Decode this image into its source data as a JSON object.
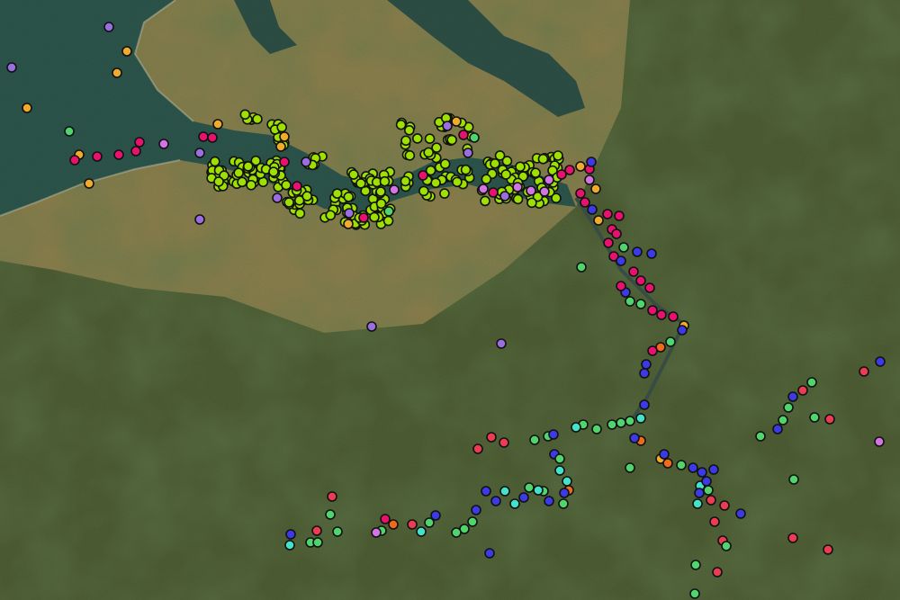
{
  "map": {
    "basemap": "satellite",
    "colors": {
      "land_agri": "#8a7f4c",
      "land_green": "#4b5a31",
      "water": "#2c554b"
    },
    "point_categories": [
      {
        "code": "L",
        "color": "#9ee000"
      },
      {
        "code": "M",
        "color": "#e8126e"
      },
      {
        "code": "P",
        "color": "#9a6ee0"
      },
      {
        "code": "V",
        "color": "#d474e4"
      },
      {
        "code": "O",
        "color": "#f0aa2c"
      },
      {
        "code": "R",
        "color": "#ea3c52"
      },
      {
        "code": "G",
        "color": "#4fd46e"
      },
      {
        "code": "C",
        "color": "#44e2c8"
      },
      {
        "code": "B",
        "color": "#3b3ae6"
      },
      {
        "code": "N",
        "color": "#f06a1c"
      }
    ]
  }
}
